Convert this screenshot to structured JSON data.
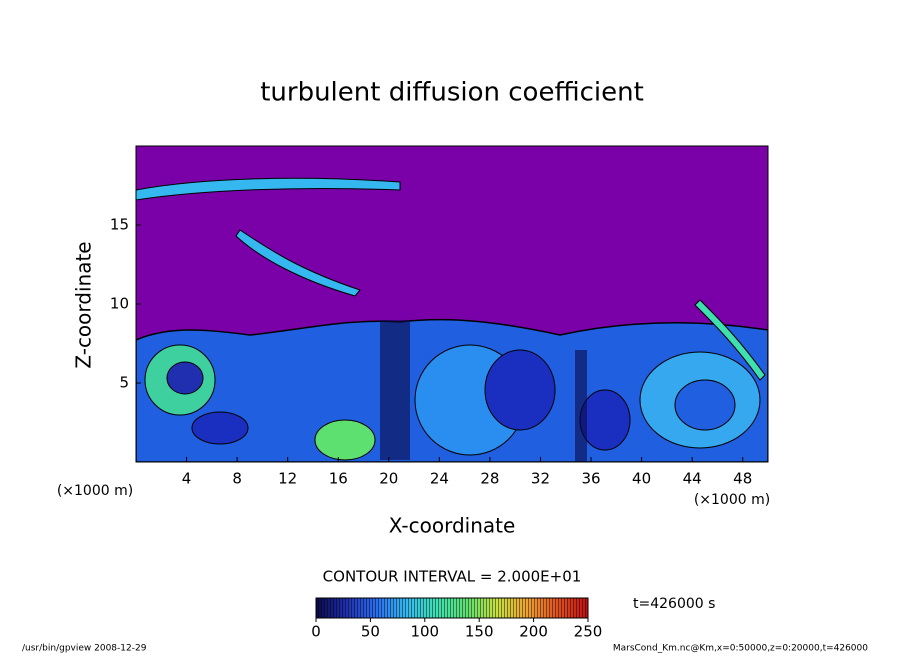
{
  "chart_data": {
    "type": "contour",
    "title": "turbulent diffusion coefficient",
    "x_label": "X-coordinate",
    "y_label": "Z-coordinate",
    "x_unit": "(×1000 m)",
    "xlim": [
      0,
      50
    ],
    "xticks": [
      4,
      8,
      12,
      16,
      20,
      24,
      28,
      32,
      36,
      40,
      44,
      48
    ],
    "ylim": [
      0,
      20
    ],
    "yticks": [
      5,
      10,
      15
    ],
    "contour_interval": "CONTOUR INTERVAL = 2.000E+01",
    "colorbar_lim": [
      0,
      250
    ],
    "colorbar_ticks": [
      0,
      50,
      100,
      150,
      200,
      250
    ],
    "colormap": [
      "#0a0a4a",
      "#1f2fb0",
      "#2a6ef0",
      "#35b8f0",
      "#3fe0b0",
      "#5ee070",
      "#c8e040",
      "#f0a030",
      "#e05020",
      "#c01010"
    ],
    "time_label": "t=426000 s",
    "footer_left": "/usr/bin/gpview  2008-12-29",
    "footer_right": "MarsCond_Km.nc@Km,x=0:50000,z=0:20000,t=426000"
  }
}
